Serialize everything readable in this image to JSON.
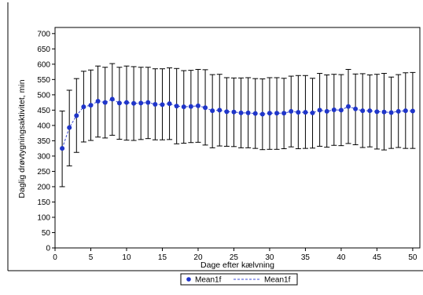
{
  "chart_data": {
    "type": "line",
    "title": "",
    "xlabel": "Dage efter kælvning",
    "ylabel": "Daglig drøvtygningsaktivitet, min",
    "xlim": [
      0,
      51
    ],
    "ylim": [
      0,
      720
    ],
    "x_ticks": [
      0,
      5,
      10,
      15,
      20,
      25,
      30,
      35,
      40,
      45,
      50
    ],
    "y_ticks": [
      0,
      50,
      100,
      150,
      200,
      250,
      300,
      350,
      400,
      450,
      500,
      550,
      600,
      650,
      700
    ],
    "grid": false,
    "legend_position": "bottom",
    "legend": [
      {
        "label": "Mean1f",
        "style": "marker"
      },
      {
        "label": "Mean1f",
        "style": "dashed-line"
      }
    ],
    "colors": {
      "marker": "#1f35c9",
      "line": "#3a4ad4",
      "errorbar": "#000000"
    },
    "series": [
      {
        "name": "Mean1f",
        "x": [
          1,
          2,
          3,
          4,
          5,
          6,
          7,
          8,
          9,
          10,
          11,
          12,
          13,
          14,
          15,
          16,
          17,
          18,
          19,
          20,
          21,
          22,
          23,
          24,
          25,
          26,
          27,
          28,
          29,
          30,
          31,
          32,
          33,
          34,
          35,
          36,
          37,
          38,
          39,
          40,
          41,
          42,
          43,
          44,
          45,
          46,
          47,
          48,
          49,
          50
        ],
        "mean": [
          325,
          393,
          432,
          461,
          466,
          479,
          475,
          486,
          473,
          475,
          472,
          473,
          475,
          469,
          468,
          471,
          463,
          461,
          462,
          464,
          458,
          448,
          450,
          445,
          444,
          441,
          441,
          439,
          437,
          440,
          440,
          440,
          446,
          443,
          443,
          441,
          450,
          446,
          451,
          450,
          462,
          454,
          448,
          448,
          445,
          444,
          442,
          446,
          448,
          447
        ],
        "upper": [
          447,
          515,
          553,
          577,
          581,
          594,
          590,
          602,
          590,
          594,
          592,
          590,
          590,
          585,
          585,
          588,
          586,
          579,
          580,
          583,
          582,
          566,
          567,
          556,
          555,
          555,
          556,
          553,
          552,
          556,
          556,
          554,
          561,
          563,
          563,
          554,
          570,
          565,
          567,
          566,
          583,
          568,
          569,
          565,
          567,
          570,
          558,
          566,
          572,
          573
        ],
        "lower": [
          200,
          268,
          312,
          346,
          351,
          362,
          359,
          368,
          355,
          352,
          351,
          354,
          357,
          353,
          353,
          354,
          340,
          342,
          344,
          345,
          336,
          327,
          333,
          332,
          331,
          327,
          327,
          325,
          321,
          322,
          322,
          324,
          330,
          324,
          325,
          326,
          332,
          329,
          335,
          334,
          341,
          337,
          328,
          330,
          323,
          320,
          325,
          328,
          325,
          325
        ]
      }
    ]
  }
}
